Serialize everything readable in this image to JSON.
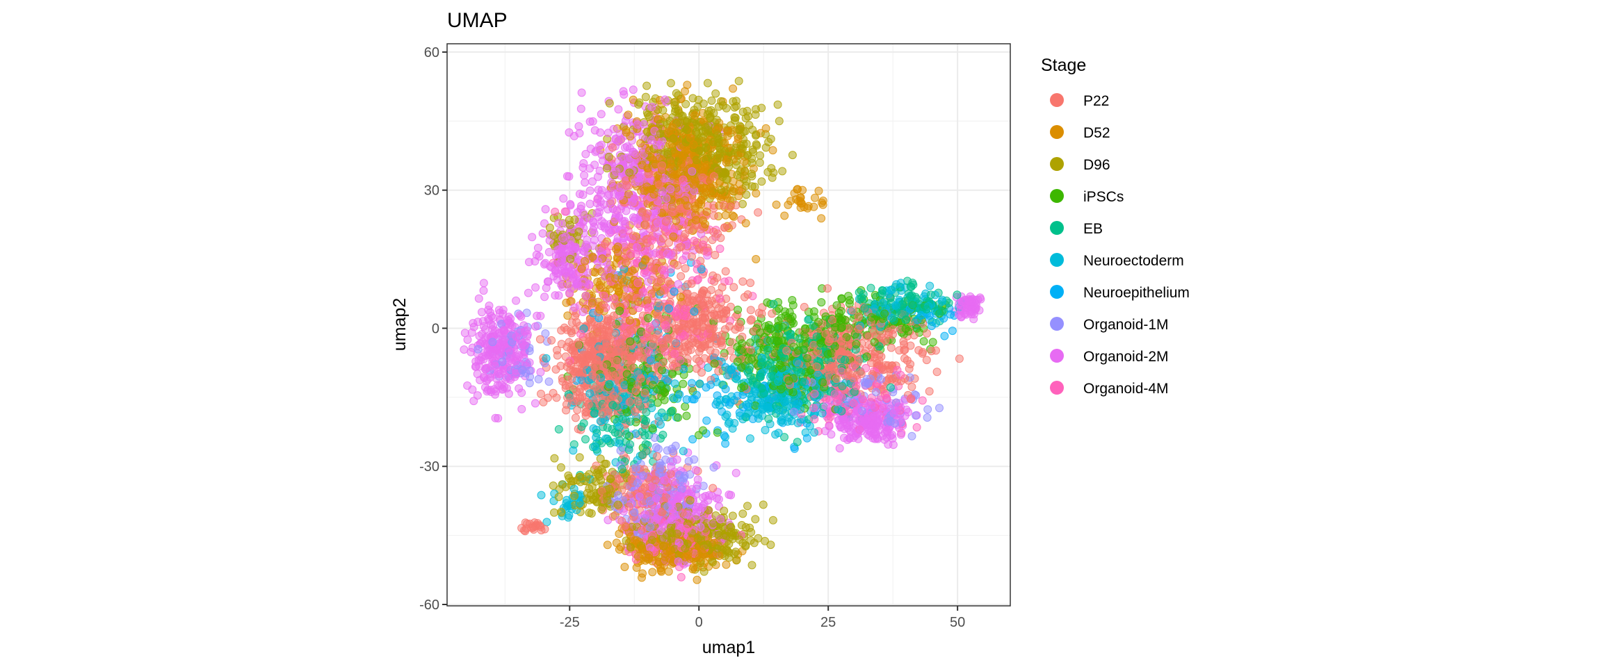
{
  "chart_data": {
    "type": "scatter",
    "title": "UMAP",
    "xlabel": "umap1",
    "ylabel": "umap2",
    "xlim": [
      -48.7,
      60.2
    ],
    "ylim": [
      -60.3,
      61.8
    ],
    "xticks": [
      -25,
      0,
      25,
      50
    ],
    "yticks": [
      -60,
      -30,
      0,
      30,
      60
    ],
    "xtick_labels": [
      "-25",
      "0",
      "25",
      "50"
    ],
    "ytick_labels": [
      "-60",
      "-30",
      "0",
      "30",
      "60"
    ],
    "grid": true,
    "point_alpha": 0.5,
    "legend": {
      "title": "Stage",
      "position": "right"
    },
    "series": [
      {
        "name": "P22",
        "color": "#F8766D",
        "clusters": [
          [
            -18,
            -8,
            8,
            10,
            500
          ],
          [
            0,
            0,
            10,
            10,
            300
          ],
          [
            30,
            -5,
            12,
            8,
            300
          ],
          [
            -5,
            25,
            10,
            12,
            200
          ],
          [
            -10,
            -35,
            8,
            6,
            120
          ],
          [
            -32,
            -43,
            2,
            1,
            20
          ]
        ]
      },
      {
        "name": "D52",
        "color": "#DB8E00",
        "clusters": [
          [
            -3,
            35,
            10,
            11,
            450
          ],
          [
            -5,
            -48,
            9,
            4,
            200
          ],
          [
            -15,
            10,
            8,
            8,
            150
          ],
          [
            20,
            27,
            4,
            3,
            25
          ]
        ]
      },
      {
        "name": "D96",
        "color": "#AEA200",
        "clusters": [
          [
            0,
            40,
            11,
            9,
            400
          ],
          [
            0,
            -45,
            10,
            5,
            250
          ],
          [
            -20,
            -35,
            6,
            5,
            100
          ],
          [
            -25,
            20,
            4,
            4,
            40
          ]
        ]
      },
      {
        "name": "iPSCs",
        "color": "#3DB700",
        "clusters": [
          [
            18,
            -5,
            10,
            9,
            250
          ],
          [
            -10,
            -10,
            10,
            12,
            120
          ],
          [
            35,
            2,
            10,
            5,
            120
          ]
        ]
      },
      {
        "name": "EB",
        "color": "#00C08B",
        "clusters": [
          [
            20,
            -10,
            10,
            9,
            200
          ],
          [
            -15,
            -20,
            8,
            10,
            100
          ],
          [
            40,
            5,
            8,
            4,
            100
          ]
        ]
      },
      {
        "name": "Neuroectoderm",
        "color": "#00BBDA",
        "clusters": [
          [
            15,
            -15,
            10,
            7,
            180
          ],
          [
            -15,
            -15,
            8,
            10,
            100
          ],
          [
            -25,
            -38,
            4,
            3,
            30
          ],
          [
            40,
            5,
            8,
            4,
            60
          ]
        ]
      },
      {
        "name": "Neuroepithelium",
        "color": "#00B0F6",
        "clusters": [
          [
            10,
            -15,
            12,
            8,
            60
          ],
          [
            -10,
            0,
            12,
            15,
            50
          ],
          [
            45,
            3,
            6,
            4,
            20
          ]
        ]
      },
      {
        "name": "Organoid-1M",
        "color": "#9590FF",
        "clusters": [
          [
            -8,
            -35,
            8,
            8,
            120
          ],
          [
            -35,
            -5,
            5,
            6,
            60
          ],
          [
            35,
            -15,
            10,
            6,
            60
          ]
        ]
      },
      {
        "name": "Organoid-2M",
        "color": "#E76BF3",
        "clusters": [
          [
            -12,
            30,
            10,
            15,
            450
          ],
          [
            -38,
            -5,
            5,
            9,
            250
          ],
          [
            -5,
            -40,
            8,
            8,
            250
          ],
          [
            33,
            -20,
            6,
            4,
            200
          ],
          [
            52,
            5,
            2,
            2,
            60
          ],
          [
            -25,
            15,
            6,
            8,
            150
          ]
        ]
      },
      {
        "name": "Organoid-4M",
        "color": "#FF62BC",
        "clusters": [
          [
            -10,
            10,
            12,
            15,
            200
          ],
          [
            30,
            -15,
            10,
            6,
            100
          ],
          [
            -5,
            -45,
            8,
            6,
            100
          ]
        ]
      }
    ]
  }
}
